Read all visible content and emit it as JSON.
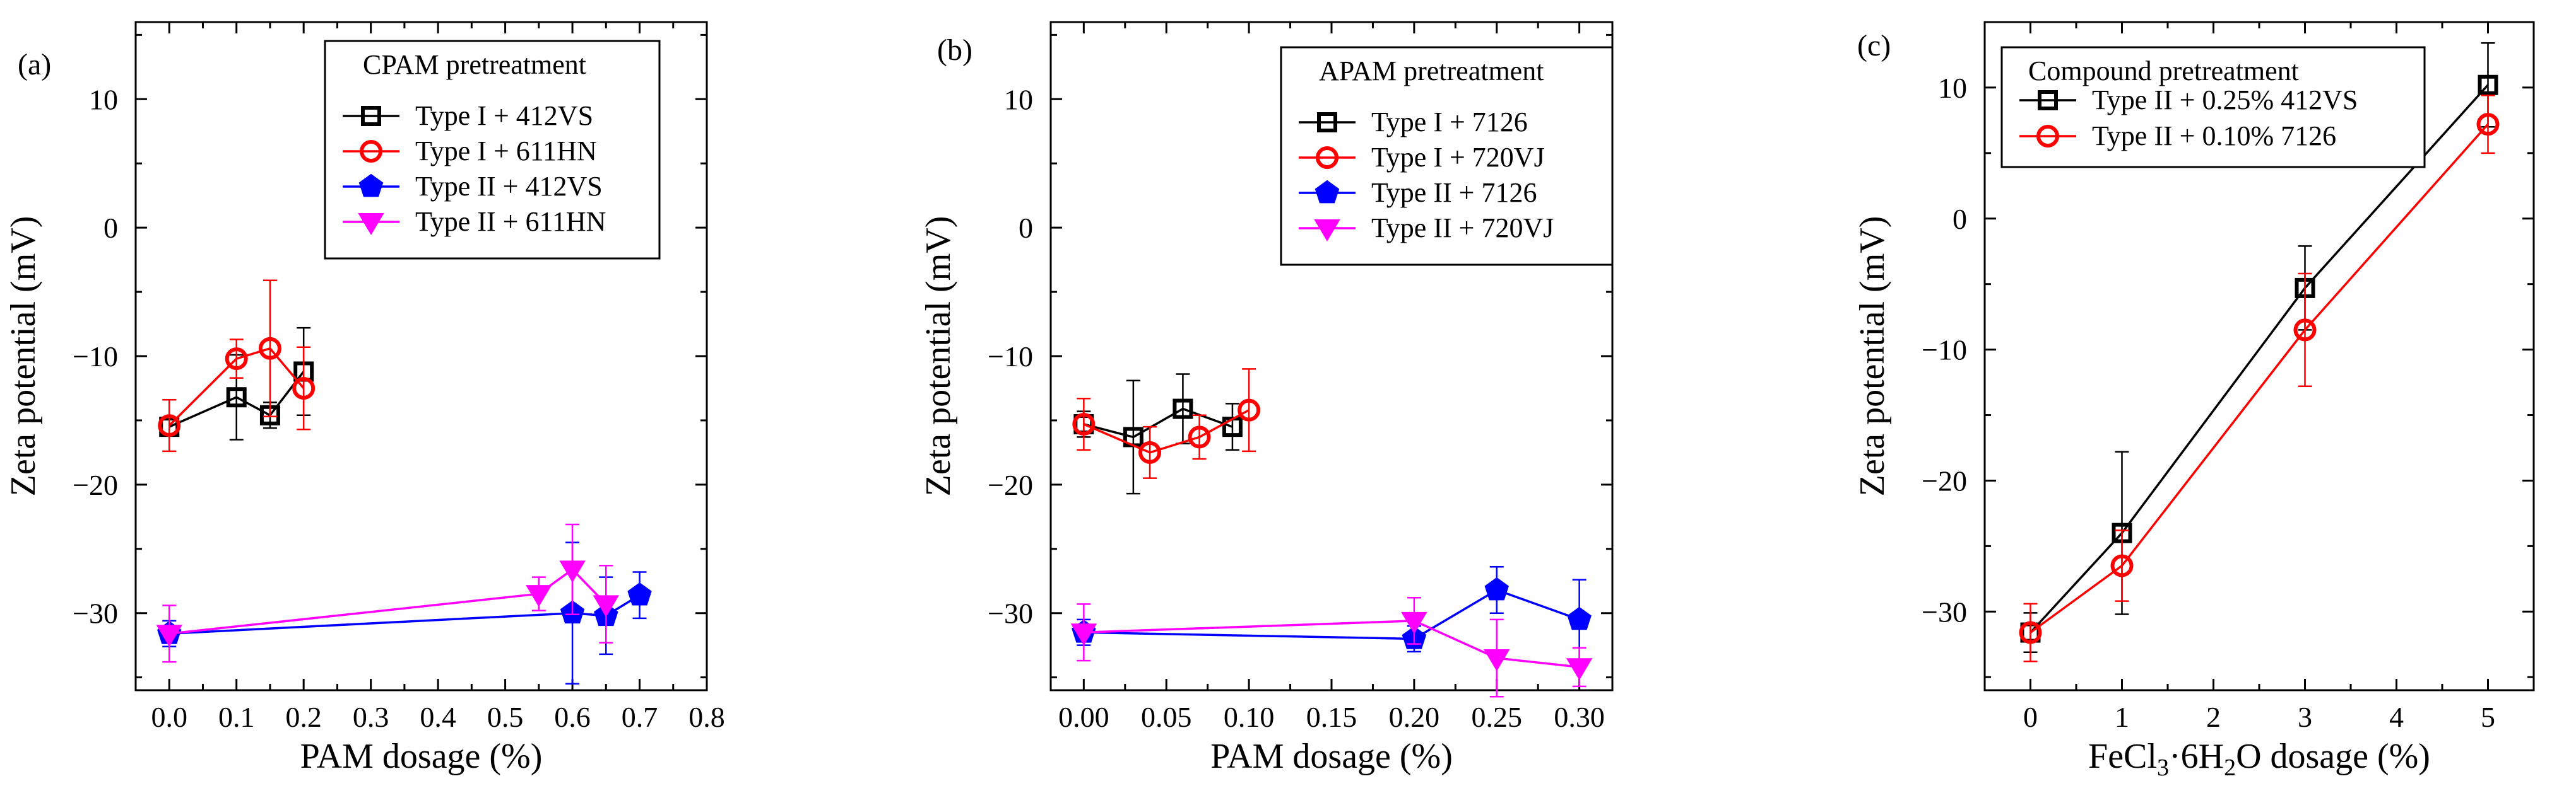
{
  "chart_data": [
    {
      "panel_label": "(a)",
      "type": "line",
      "xlabel": "PAM dosage (%)",
      "ylabel": "Zeta potential (mV)",
      "xlim": [
        -0.05,
        0.8
      ],
      "ylim": [
        -36,
        16
      ],
      "xticks": [
        0.0,
        0.1,
        0.2,
        0.3,
        0.4,
        0.5,
        0.6,
        0.7,
        0.8
      ],
      "xtick_labels": [
        "0.0",
        "0.1",
        "0.2",
        "0.3",
        "0.4",
        "0.5",
        "0.6",
        "0.7",
        "0.8"
      ],
      "yticks": [
        -30,
        -20,
        -10,
        0,
        10
      ],
      "ytick_labels": [
        "−30",
        "−20",
        "−10",
        "0",
        "10"
      ],
      "legend_title": "CPAM pretreatment",
      "series": [
        {
          "name": "Type I  + 412VS",
          "color": "#000000",
          "marker": "square",
          "x": [
            0.0,
            0.1,
            0.15,
            0.2
          ],
          "y": [
            -15.5,
            -13.2,
            -14.6,
            -11.2
          ],
          "err": [
            0.6,
            3.3,
            1.0,
            3.4
          ]
        },
        {
          "name": "Type I  + 611HN",
          "color": "#ff0000",
          "marker": "circle",
          "x": [
            0.0,
            0.1,
            0.15,
            0.2
          ],
          "y": [
            -15.4,
            -10.2,
            -9.4,
            -12.5
          ],
          "err": [
            2.0,
            1.5,
            5.3,
            3.2
          ]
        },
        {
          "name": "Type II + 412VS",
          "color": "#0000ff",
          "marker": "pentagon",
          "x": [
            0.0,
            0.6,
            0.65,
            0.7
          ],
          "y": [
            -31.6,
            -30.0,
            -30.2,
            -28.6
          ],
          "err": [
            1.0,
            5.5,
            3.0,
            1.8
          ]
        },
        {
          "name": "Type II + 611HN",
          "color": "#ff00ff",
          "marker": "triangle-down",
          "x": [
            0.0,
            0.55,
            0.6,
            0.65
          ],
          "y": [
            -31.6,
            -28.5,
            -26.6,
            -29.3
          ],
          "err": [
            2.2,
            1.3,
            3.5,
            3.0
          ]
        }
      ]
    },
    {
      "panel_label": "(b)",
      "type": "line",
      "xlabel": "PAM dosage (%)",
      "ylabel": "Zeta potential (mV)",
      "xlim": [
        -0.02,
        0.32
      ],
      "ylim": [
        -36,
        16
      ],
      "xticks": [
        0.0,
        0.05,
        0.1,
        0.15,
        0.2,
        0.25,
        0.3
      ],
      "xtick_labels": [
        "0.00",
        "0.05",
        "0.10",
        "0.15",
        "0.20",
        "0.25",
        "0.30"
      ],
      "yticks": [
        -30,
        -20,
        -10,
        0,
        10
      ],
      "ytick_labels": [
        "−30",
        "−20",
        "−10",
        "0",
        "10"
      ],
      "legend_title": "APAM pretreatment",
      "series": [
        {
          "name": "Type I  + 7126",
          "color": "#000000",
          "marker": "square",
          "x": [
            0.0,
            0.03,
            0.06,
            0.09
          ],
          "y": [
            -15.3,
            -16.3,
            -14.1,
            -15.5
          ],
          "err": [
            1.0,
            4.4,
            2.7,
            1.8
          ]
        },
        {
          "name": "Type I  + 720VJ",
          "color": "#ff0000",
          "marker": "circle",
          "x": [
            0.0,
            0.04,
            0.07,
            0.1
          ],
          "y": [
            -15.3,
            -17.5,
            -16.3,
            -14.2
          ],
          "err": [
            2.0,
            2.0,
            1.7,
            3.2
          ]
        },
        {
          "name": "Type II + 7126",
          "color": "#0000ff",
          "marker": "pentagon",
          "x": [
            0.0,
            0.2,
            0.25,
            0.3
          ],
          "y": [
            -31.5,
            -32.0,
            -28.2,
            -30.5
          ],
          "err": [
            1.0,
            1.0,
            1.8,
            3.1
          ]
        },
        {
          "name": "Type II + 720VJ",
          "color": "#ff00ff",
          "marker": "triangle-down",
          "x": [
            0.0,
            0.2,
            0.25,
            0.3
          ],
          "y": [
            -31.5,
            -30.6,
            -33.5,
            -34.2
          ],
          "err": [
            2.2,
            1.8,
            3.0,
            1.5
          ]
        }
      ]
    },
    {
      "panel_label": "(c)",
      "type": "line",
      "xlabel_parts": [
        "FeCl",
        "3",
        "·6H",
        "2",
        "O dosage (%)"
      ],
      "ylabel": "Zeta potential (mV)",
      "xlim": [
        -0.5,
        5.5
      ],
      "ylim": [
        -36,
        15
      ],
      "xticks": [
        0,
        1,
        2,
        3,
        4,
        5
      ],
      "xtick_labels": [
        "0",
        "1",
        "2",
        "3",
        "4",
        "5"
      ],
      "yticks": [
        -30,
        -20,
        -10,
        0,
        10
      ],
      "ytick_labels": [
        "−30",
        "−20",
        "−10",
        "0",
        "10"
      ],
      "legend_title": "Compound pretreatment",
      "series": [
        {
          "name": "Type II + 0.25% 412VS",
          "color": "#000000",
          "marker": "square",
          "x": [
            0,
            1,
            3,
            5
          ],
          "y": [
            -31.6,
            -24.0,
            -5.3,
            10.2
          ],
          "err": [
            1.5,
            6.2,
            3.2,
            3.2
          ]
        },
        {
          "name": "Type II + 0.10% 7126",
          "color": "#ff0000",
          "marker": "circle",
          "x": [
            0,
            1,
            3,
            5
          ],
          "y": [
            -31.6,
            -26.5,
            -8.5,
            7.2
          ],
          "err": [
            2.2,
            2.7,
            4.3,
            2.2
          ]
        }
      ]
    }
  ]
}
